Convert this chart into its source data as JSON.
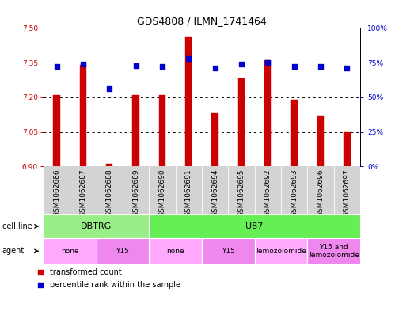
{
  "title": "GDS4808 / ILMN_1741464",
  "samples": [
    "GSM1062686",
    "GSM1062687",
    "GSM1062688",
    "GSM1062689",
    "GSM1062690",
    "GSM1062691",
    "GSM1062694",
    "GSM1062695",
    "GSM1062692",
    "GSM1062693",
    "GSM1062696",
    "GSM1062697"
  ],
  "bar_values": [
    7.21,
    7.34,
    6.91,
    7.21,
    7.21,
    7.46,
    7.13,
    7.28,
    7.36,
    7.19,
    7.12,
    7.05
  ],
  "dot_values": [
    72,
    74,
    56,
    73,
    72,
    78,
    71,
    74,
    75,
    72,
    72,
    71
  ],
  "bar_color": "#cc0000",
  "dot_color": "#0000cc",
  "ylim_left": [
    6.9,
    7.5
  ],
  "ylim_right": [
    0,
    100
  ],
  "yticks_left": [
    6.9,
    7.05,
    7.2,
    7.35,
    7.5
  ],
  "yticks_right": [
    0,
    25,
    50,
    75,
    100
  ],
  "ytick_labels_right": [
    "0%",
    "25%",
    "50%",
    "75%",
    "100%"
  ],
  "grid_yticks": [
    7.05,
    7.2,
    7.35
  ],
  "cell_line_groups": [
    {
      "label": "DBTRG",
      "start": 0,
      "end": 3,
      "color": "#99ee88"
    },
    {
      "label": "U87",
      "start": 4,
      "end": 11,
      "color": "#66ee55"
    }
  ],
  "agent_groups": [
    {
      "label": "none",
      "start": 0,
      "end": 1,
      "color": "#ffaaff"
    },
    {
      "label": "Y15",
      "start": 2,
      "end": 3,
      "color": "#ee88ee"
    },
    {
      "label": "none",
      "start": 4,
      "end": 5,
      "color": "#ffaaff"
    },
    {
      "label": "Y15",
      "start": 6,
      "end": 7,
      "color": "#ee88ee"
    },
    {
      "label": "Temozolomide",
      "start": 8,
      "end": 9,
      "color": "#ffaaff"
    },
    {
      "label": "Y15 and\nTemozolomide",
      "start": 10,
      "end": 11,
      "color": "#ee88ee"
    }
  ],
  "bar_width": 0.25,
  "dot_size": 14,
  "label_fontsize": 7,
  "title_fontsize": 9,
  "tick_fontsize": 6.5
}
